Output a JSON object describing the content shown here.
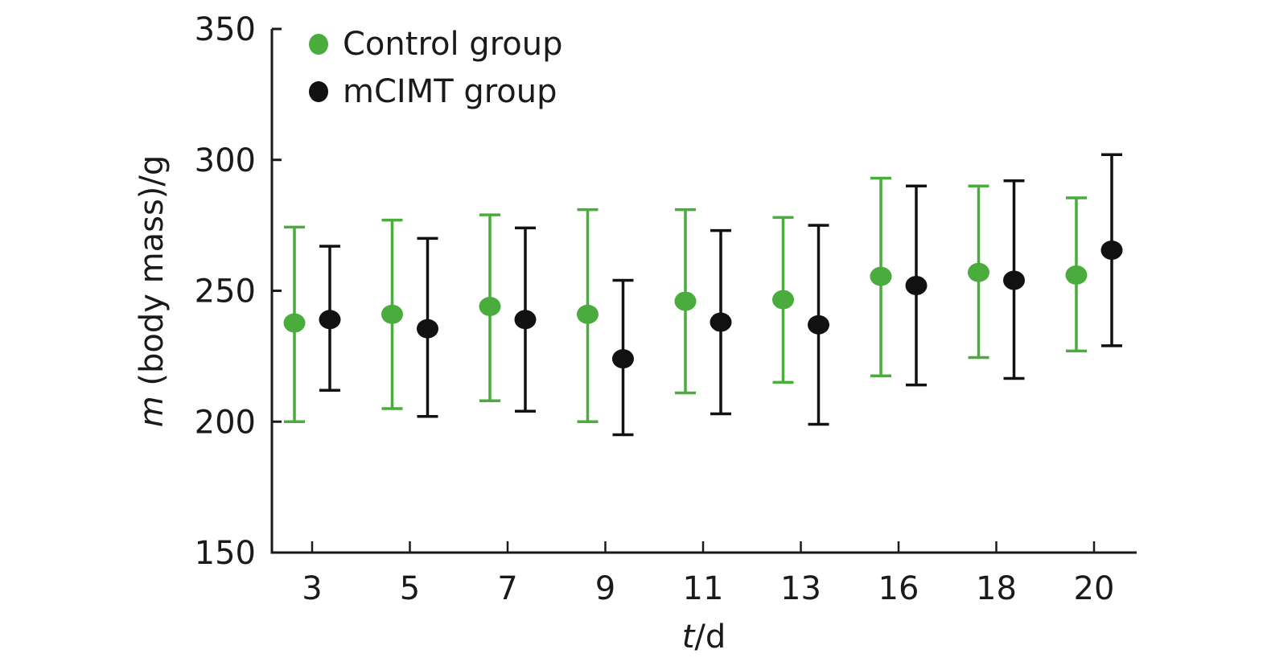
{
  "chart_data": {
    "type": "scatter",
    "subtype": "error-bar",
    "title": "",
    "xlabel_italic": "t",
    "xlabel_rest": "/d",
    "ylabel_italic": "m",
    "ylabel_rest": " (body mass)/g",
    "categories": [
      "3",
      "5",
      "7",
      "9",
      "11",
      "13",
      "16",
      "18",
      "20"
    ],
    "ylim": [
      150,
      350
    ],
    "yticks": [
      "150",
      "200",
      "250",
      "300",
      "350"
    ],
    "grid": false,
    "legend_position": "top-left",
    "series": [
      {
        "name": "Control group",
        "color": "#4aac3c",
        "values": [
          237.7,
          241,
          244,
          241,
          246,
          246.6,
          255.5,
          257,
          256
        ],
        "upper": [
          274.3,
          277,
          279,
          281,
          281,
          278,
          293,
          290,
          285.5
        ],
        "lower": [
          200,
          205,
          208,
          200,
          211,
          215,
          217.5,
          224.5,
          227
        ]
      },
      {
        "name": "mCIMT group",
        "color": "#111111",
        "values": [
          239,
          235.5,
          239,
          224,
          238,
          237,
          252,
          254,
          265.5
        ],
        "upper": [
          267,
          270,
          274,
          254,
          273,
          275,
          290,
          292,
          302
        ],
        "lower": [
          212,
          202,
          204,
          195,
          203,
          199,
          214,
          216.5,
          229
        ]
      }
    ]
  }
}
